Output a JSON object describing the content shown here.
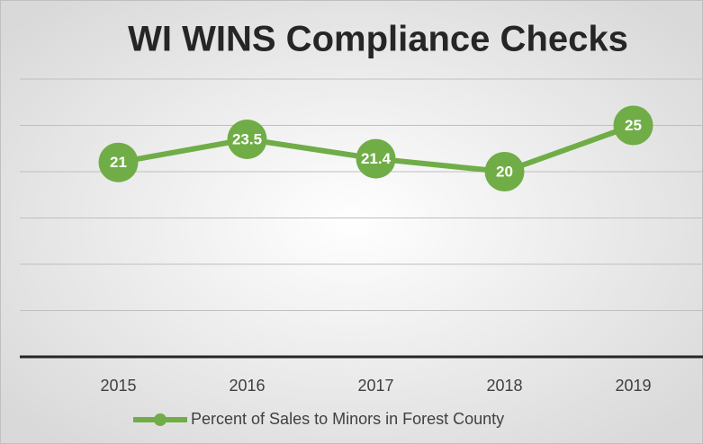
{
  "chart_data": {
    "type": "line",
    "title": "WI WINS Compliance Checks",
    "categories": [
      "2015",
      "2016",
      "2017",
      "2018",
      "2019"
    ],
    "series": [
      {
        "name": "Percent of Sales to Minors in Forest County",
        "color": "#70ad47",
        "values": [
          21,
          23.5,
          21.4,
          20,
          25
        ]
      }
    ],
    "ylim": [
      0,
      30
    ],
    "yticks": [
      0,
      5,
      10,
      15,
      20,
      25,
      30
    ],
    "grid": true,
    "legend": "bottom"
  }
}
